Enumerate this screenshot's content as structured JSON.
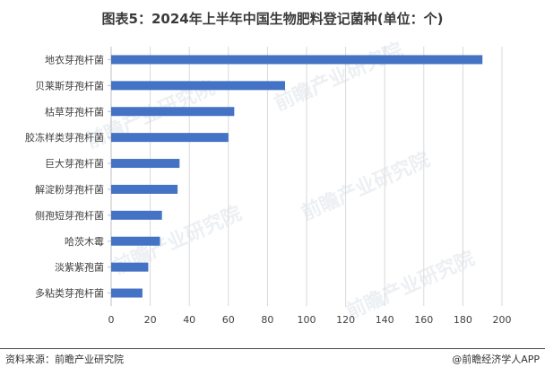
{
  "title": "图表5：2024年上半年中国生物肥料登记菌种(单位：个)",
  "source": "资料来源：前瞻产业研究院",
  "credit": "@前瞻经济学人APP",
  "watermark": "前瞻产业研究院",
  "colors": {
    "bar": "#4472c4",
    "grid": "#d9d9d9",
    "axis": "#bfbfbf",
    "text": "#404040"
  },
  "chart_data": {
    "type": "bar",
    "orientation": "horizontal",
    "categories": [
      "地衣芽孢杆菌",
      "贝莱斯芽孢杆菌",
      "枯草芽孢杆菌",
      "胶冻样类芽孢杆菌",
      "巨大芽孢杆菌",
      "解淀粉芽孢杆菌",
      "侧孢短芽孢杆菌",
      "哈茨木霉",
      "淡紫紫孢菌",
      "多粘类芽孢杆菌"
    ],
    "values": [
      190,
      89,
      63,
      60,
      35,
      34,
      26,
      25,
      19,
      16
    ],
    "xlim": [
      0,
      200
    ],
    "xticks": [
      0,
      20,
      40,
      60,
      80,
      100,
      120,
      140,
      160,
      180,
      200
    ],
    "grid": true,
    "xlabel": "",
    "ylabel": ""
  }
}
